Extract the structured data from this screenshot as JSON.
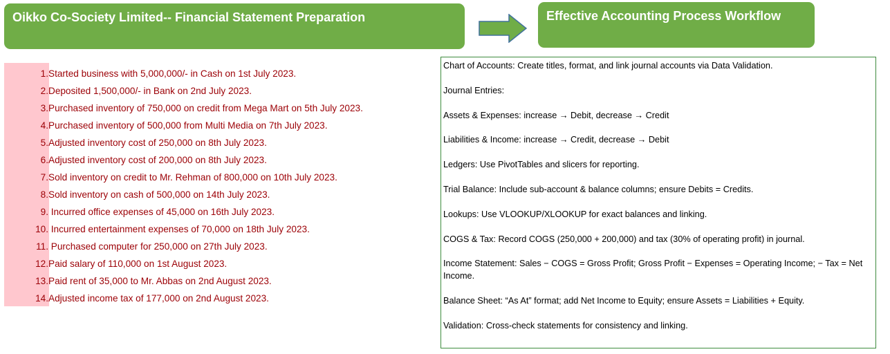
{
  "header": {
    "title": "Oikko Co-Society Limited-- Financial  Statement Preparation",
    "workflow_title": "Effective Accounting Process Workflow",
    "arrow_icon": "right-arrow-icon",
    "accent_color": "#70ad47"
  },
  "transactions": [
    {
      "num": "1.",
      "text": "Started business with 5,000,000/- in Cash on 1st July 2023."
    },
    {
      "num": "2.",
      "text": "Deposited 1,500,000/- in Bank on 2nd July 2023."
    },
    {
      "num": "3.",
      "text": "Purchased inventory of 750,000 on credit from Mega Mart on 5th July 2023."
    },
    {
      "num": "4.",
      "text": "Purchased inventory of 500,000 from Multi Media on 7th July 2023."
    },
    {
      "num": "5.",
      "text": "Adjusted inventory cost of 250,000 on 8th July 2023."
    },
    {
      "num": "6.",
      "text": "Adjusted inventory cost of 200,000 on 8th July 2023."
    },
    {
      "num": "7.",
      "text": "Sold inventory on credit to Mr. Rehman of 800,000 on 10th July 2023."
    },
    {
      "num": "8.",
      "text": "Sold inventory on cash of 500,000 on 14th July 2023."
    },
    {
      "num": "9.",
      "text": " Incurred office expenses of 45,000 on 16th July 2023."
    },
    {
      "num": "10.",
      "text": " Incurred entertainment expenses of 70,000 on 18th July 2023."
    },
    {
      "num": "11.",
      "text": " Purchased computer for 250,000 on 27th July 2023."
    },
    {
      "num": "12.",
      "text": "Paid salary of 110,000 on 1st August 2023."
    },
    {
      "num": "13.",
      "text": "Paid rent of 35,000 to Mr. Abbas on 2nd August 2023."
    },
    {
      "num": "14.",
      "text": "Adjusted income tax of 177,000 on 2nd August 2023."
    }
  ],
  "workflow": [
    "Chart of Accounts: Create titles, format, and link journal accounts via Data Validation.",
    "Journal Entries:",
    "Assets & Expenses: increase → Debit, decrease → Credit",
    "Liabilities & Income: increase → Credit, decrease → Debit",
    "Ledgers: Use PivotTables and slicers for reporting.",
    "Trial Balance: Include sub-account & balance columns; ensure Debits = Credits.",
    "Lookups: Use VLOOKUP/XLOOKUP for exact balances and linking.",
    "COGS & Tax: Record COGS (250,000 + 200,000) and tax (30% of operating profit) in journal.",
    "Income Statement: Sales − COGS = Gross Profit; Gross Profit − Expenses = Operating Income; − Tax = Net Income.",
    "Balance Sheet: “As At” format; add Net Income to Equity; ensure Assets = Liabilities + Equity.",
    "Validation: Cross-check statements for consistency and linking."
  ]
}
